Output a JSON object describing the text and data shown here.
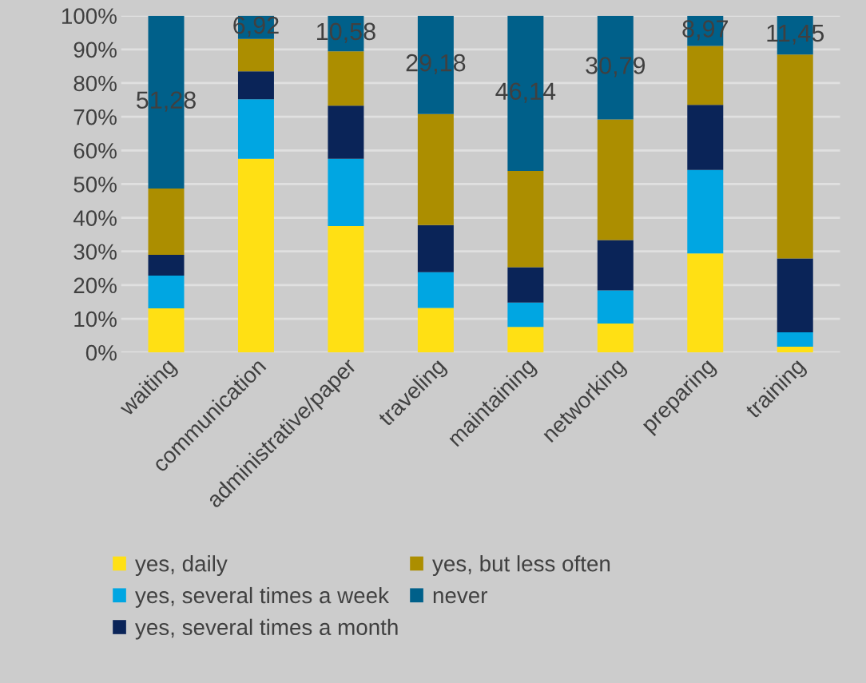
{
  "chart_data": {
    "type": "bar",
    "stacked": true,
    "categories": [
      "waiting",
      "communication",
      "administrative/paper",
      "traveling",
      "maintaining",
      "networking",
      "preparing",
      "training"
    ],
    "series": [
      {
        "name": "yes, daily",
        "color": "#ffe014",
        "values": [
          13.1,
          57.5,
          37.5,
          13.2,
          7.6,
          8.6,
          29.4,
          1.7
        ]
      },
      {
        "name": "yes, several times a week",
        "color": "#00a6e2",
        "values": [
          9.7,
          17.7,
          20.0,
          10.6,
          7.2,
          9.8,
          24.8,
          4.3
        ]
      },
      {
        "name": "yes, several times a month",
        "color": "#0a2458",
        "values": [
          6.2,
          8.3,
          15.8,
          14.0,
          10.5,
          15.0,
          19.3,
          21.9
        ]
      },
      {
        "name": "yes, but less often",
        "color": "#ac8e00",
        "values": [
          19.7,
          9.6,
          16.1,
          33.0,
          28.6,
          35.8,
          17.5,
          60.6
        ]
      },
      {
        "name": "never",
        "color": "#00608a",
        "values": [
          51.28,
          6.92,
          10.58,
          29.18,
          46.14,
          30.79,
          8.97,
          11.45
        ],
        "value_labels": [
          "51,28",
          "6,92",
          "10,58",
          "29,18",
          "46,14",
          "30,79",
          "8,97",
          "11,45"
        ]
      }
    ],
    "ylim": [
      0,
      100
    ],
    "yticks": [
      {
        "value": 0,
        "label": "0%"
      },
      {
        "value": 10,
        "label": "10%"
      },
      {
        "value": 20,
        "label": "20%"
      },
      {
        "value": 30,
        "label": "30%"
      },
      {
        "value": 40,
        "label": "40%"
      },
      {
        "value": 50,
        "label": "50%"
      },
      {
        "value": 60,
        "label": "60%"
      },
      {
        "value": 70,
        "label": "70%"
      },
      {
        "value": 80,
        "label": "80%"
      },
      {
        "value": 90,
        "label": "90%"
      },
      {
        "value": 100,
        "label": "100%"
      }
    ],
    "grid": "y",
    "legend": "bottom"
  }
}
